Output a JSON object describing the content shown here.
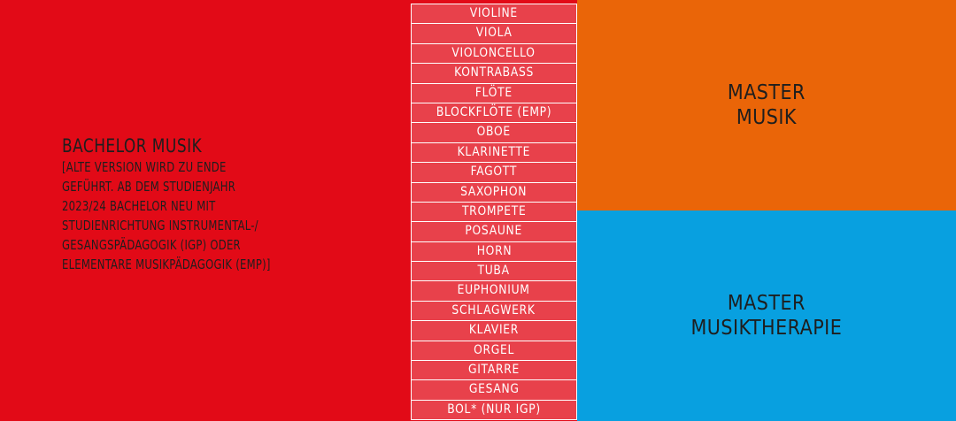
{
  "colors": {
    "red": "#e20a17",
    "list_cell": "#e8414b",
    "orange": "#ea6508",
    "blue": "#08a0e0",
    "text_dark": "#1e1e1e",
    "text_light": "#ffffff"
  },
  "bachelor": {
    "title": "BACHELOR MUSIK",
    "note_lines": [
      "[ALTE VERSION WIRD ZU ENDE",
      "GEFÜHRT. AB DEM STUDIENJAHR",
      "2023/24 BACHELOR NEU MIT",
      "STUDIENRICHTUNG INSTRUMENTAL-/",
      "GESANGSPÄDAGOGIK (IGP) ODER",
      "ELEMENTARE MUSIKPÄDAGOGIK (EMP)]"
    ]
  },
  "instruments": [
    "VIOLINE",
    "VIOLA",
    "VIOLONCELLO",
    "KONTRABASS",
    "FLÖTE",
    "BLOCKFLÖTE (EMP)",
    "OBOE",
    "KLARINETTE",
    "FAGOTT",
    "SAXOPHON",
    "TROMPETE",
    "POSAUNE",
    "HORN",
    "TUBA",
    "EUPHONIUM",
    "SCHLAGWERK",
    "KLAVIER",
    "ORGEL",
    "GITARRE",
    "GESANG",
    "BOL* (NUR IGP)"
  ],
  "master_musik": {
    "lines": [
      "MASTER",
      "MUSIK"
    ]
  },
  "master_musiktherapie": {
    "lines": [
      "MASTER",
      "MUSIKTHERAPIE"
    ]
  }
}
